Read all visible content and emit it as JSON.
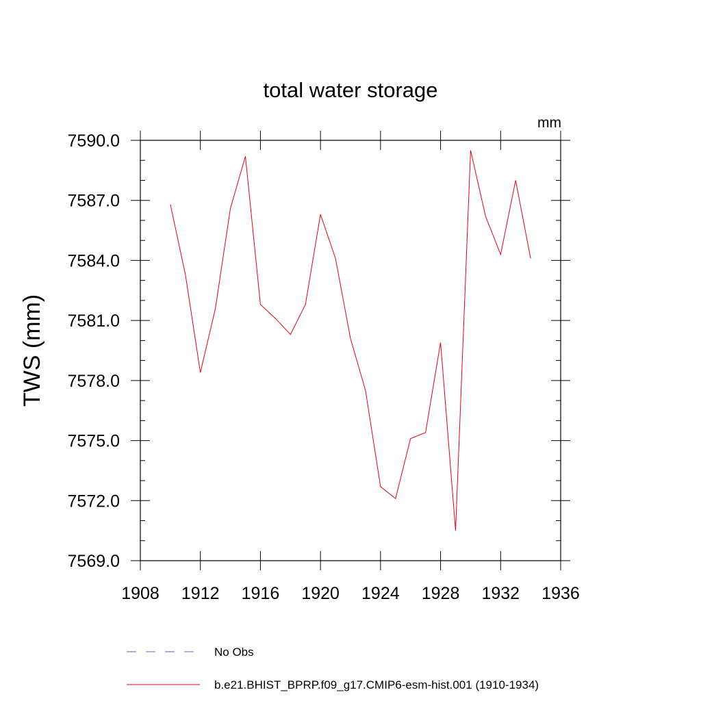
{
  "chart_data": {
    "type": "line",
    "title": "total water storage",
    "units_label": "mm",
    "ylabel": "TWS  (mm)",
    "xlabel": "",
    "xlim": [
      1908,
      1936
    ],
    "ylim": [
      7569.0,
      7590.0
    ],
    "x_ticks": [
      1908,
      1912,
      1916,
      1920,
      1924,
      1928,
      1932,
      1936
    ],
    "y_ticks": [
      7569.0,
      7572.0,
      7575.0,
      7578.0,
      7581.0,
      7584.0,
      7587.0,
      7590.0
    ],
    "x_tick_labels": [
      "1908",
      "1912",
      "1916",
      "1920",
      "1924",
      "1928",
      "1932",
      "1936"
    ],
    "y_tick_labels": [
      "7569.0",
      "7572.0",
      "7575.0",
      "7578.0",
      "7581.0",
      "7584.0",
      "7587.0",
      "7590.0"
    ],
    "grid": false,
    "legend_position": "bottom",
    "series": [
      {
        "name": "b.e21.BHIST_BPRP.f09_g17.CMIP6-esm-hist.001 (1910-1934)",
        "color": "#e8000b",
        "dash": "solid",
        "x": [
          1910,
          1911,
          1912,
          1913,
          1914,
          1915,
          1916,
          1917,
          1918,
          1919,
          1920,
          1921,
          1922,
          1923,
          1924,
          1925,
          1926,
          1927,
          1928,
          1929,
          1930,
          1931,
          1932,
          1933,
          1934
        ],
        "values": [
          7586.8,
          7583.3,
          7578.4,
          7581.6,
          7586.6,
          7589.2,
          7581.8,
          7581.1,
          7580.3,
          7581.8,
          7586.3,
          7584.1,
          7580.1,
          7577.5,
          7572.7,
          7572.1,
          7575.1,
          7575.4,
          7579.9,
          7570.5,
          7589.5,
          7586.2,
          7584.3,
          7588.0,
          7584.1
        ]
      }
    ],
    "legend": [
      {
        "label": "No Obs",
        "color": "#6a5acd",
        "dash": "dashed"
      },
      {
        "label": "b.e21.BHIST_BPRP.f09_g17.CMIP6-esm-hist.001 (1910-1934)",
        "color": "#e8000b",
        "dash": "solid"
      }
    ]
  }
}
